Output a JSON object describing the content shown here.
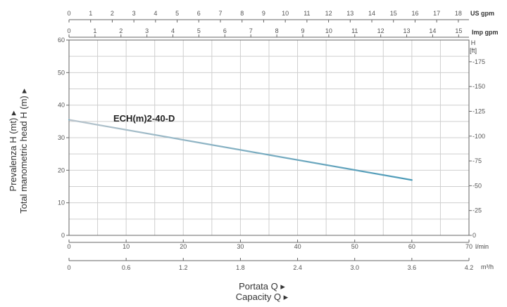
{
  "chart_data": {
    "type": "line",
    "curve_label": "ECH(m)2-40-D",
    "x_axis": {
      "unit": "l/min",
      "range": [
        0,
        70
      ],
      "ticks": [
        0,
        10,
        20,
        30,
        40,
        50,
        60,
        70
      ],
      "tick_labels": [
        "0",
        "10",
        "20",
        "30",
        "40",
        "50",
        "60",
        "70"
      ]
    },
    "x_axis_m3h": {
      "unit": "m³/h",
      "range": [
        0,
        4.2
      ],
      "ticks": [
        0,
        0.6,
        1.2,
        1.8,
        2.4,
        3.0,
        3.6,
        4.2
      ],
      "tick_labels": [
        "0",
        "0.6",
        "1.2",
        "1.8",
        "2.4",
        "3.0",
        "3.6",
        "4.2"
      ]
    },
    "x_axis_us_gpm": {
      "unit": "US gpm",
      "ticks": [
        0,
        1,
        2,
        3,
        4,
        5,
        6,
        7,
        8,
        9,
        10,
        11,
        12,
        13,
        14,
        15,
        16,
        17,
        18
      ],
      "tick_labels": [
        "0",
        "1",
        "2",
        "3",
        "4",
        "5",
        "6",
        "7",
        "8",
        "9",
        "10",
        "11",
        "12",
        "13",
        "14",
        "15",
        "16",
        "17",
        "18"
      ]
    },
    "x_axis_imp_gpm": {
      "unit": "Imp gpm",
      "ticks": [
        0,
        1,
        2,
        3,
        4,
        5,
        6,
        7,
        8,
        9,
        10,
        11,
        12,
        13,
        14,
        15
      ],
      "tick_labels": [
        "0",
        "1",
        "2",
        "3",
        "4",
        "5",
        "6",
        "7",
        "8",
        "9",
        "10",
        "11",
        "12",
        "13",
        "14",
        "15"
      ]
    },
    "y_axis": {
      "range": [
        0,
        60
      ],
      "ticks": [
        0,
        10,
        20,
        30,
        40,
        50,
        60
      ],
      "tick_labels": [
        "0",
        "10",
        "20",
        "30",
        "40",
        "50",
        "60"
      ]
    },
    "y_axis_ft": {
      "unit_line1": "H",
      "unit_line2": "[ft]",
      "ticks": [
        0,
        25,
        50,
        75,
        100,
        125,
        150,
        175
      ],
      "tick_labels": [
        "0",
        "25",
        "50",
        "75",
        "100",
        "125",
        "150",
        "175"
      ]
    },
    "series": [
      {
        "x": [
          0,
          60
        ],
        "y": [
          35.5,
          17
        ]
      }
    ],
    "grid": true,
    "colors": {
      "curve_start": "#b8c4cc",
      "curve_end": "#4a9ab8"
    }
  },
  "labels": {
    "ylabel_it": "Prevalenza H (mt) ▸",
    "ylabel_en": "Total manometric head H (m) ▸",
    "xlabel_it": "Portata Q ▸",
    "xlabel_en": "Capacity Q ▸"
  }
}
